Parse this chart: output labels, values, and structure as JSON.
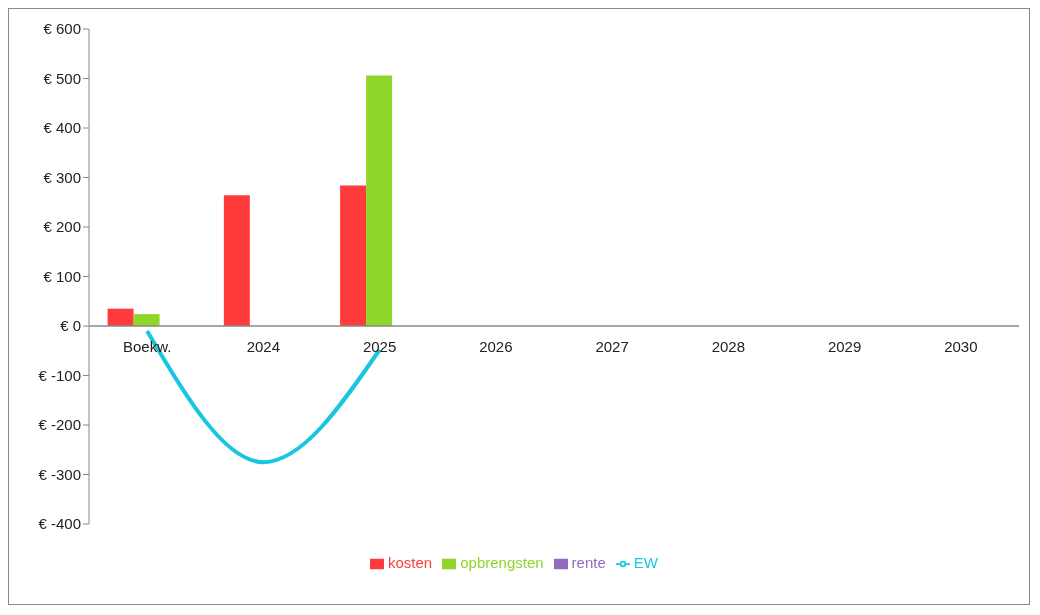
{
  "chart_data": {
    "type": "bar",
    "categories": [
      "Boekw.",
      "2024",
      "2025",
      "2026",
      "2027",
      "2028",
      "2029",
      "2030"
    ],
    "series": [
      {
        "name": "kosten",
        "color": "#ff3b3b",
        "values": [
          35,
          264,
          284,
          null,
          null,
          null,
          null,
          null
        ]
      },
      {
        "name": "opbrengsten",
        "color": "#8fd62a",
        "values": [
          24,
          0,
          506,
          null,
          null,
          null,
          null,
          null
        ]
      },
      {
        "name": "rente",
        "color": "#8e6bbf",
        "values": [
          0,
          null,
          null,
          null,
          null,
          null,
          null,
          null
        ]
      },
      {
        "name": "EW",
        "type": "line",
        "color": "#19c6df",
        "values": [
          -10,
          -275,
          -48,
          null,
          null,
          null,
          null,
          null
        ]
      }
    ],
    "ylim": [
      -400,
      600
    ],
    "yticks": [
      {
        "value": -400,
        "label": "€ -400"
      },
      {
        "value": -300,
        "label": "€ -300"
      },
      {
        "value": -200,
        "label": "€ -200"
      },
      {
        "value": -100,
        "label": "€ -100"
      },
      {
        "value": 0,
        "label": "€ 0"
      },
      {
        "value": 100,
        "label": "€ 100"
      },
      {
        "value": 200,
        "label": "€ 200"
      },
      {
        "value": 300,
        "label": "€ 300"
      },
      {
        "value": 400,
        "label": "€ 400"
      },
      {
        "value": 500,
        "label": "€ 500"
      },
      {
        "value": 600,
        "label": "€ 600"
      }
    ],
    "grid": false,
    "legend": "bottom",
    "marker": "none"
  }
}
